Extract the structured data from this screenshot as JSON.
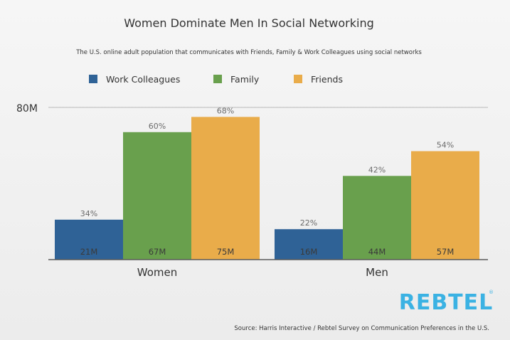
{
  "title": "Women Dominate Men In Social Networking",
  "subtitle": "The U.S. online adult population that communicates with Friends, Family & Work Colleagues using social networks",
  "source": "Source: Harris Interactive / Rebtel Survey on Communication Preferences in the U.S.",
  "logo": {
    "text": "REBTEL",
    "reg": "®"
  },
  "colors": {
    "work": "#2f6296",
    "family": "#69a04d",
    "friends": "#e9ac4a",
    "axis": "#5a5a5a",
    "grid": "#b8b8b8"
  },
  "chart_data": {
    "type": "bar",
    "categories": [
      "Women",
      "Men"
    ],
    "series": [
      {
        "name": "Work Colleagues",
        "values": [
          21,
          16
        ],
        "value_labels": [
          "21M",
          "16M"
        ],
        "percent_labels": [
          "34%",
          "22%"
        ]
      },
      {
        "name": "Family",
        "values": [
          67,
          44
        ],
        "value_labels": [
          "67M",
          "44M"
        ],
        "percent_labels": [
          "60%",
          "42%"
        ]
      },
      {
        "name": "Friends",
        "values": [
          75,
          57
        ],
        "value_labels": [
          "75M",
          "57M"
        ],
        "percent_labels": [
          "68%",
          "54%"
        ]
      }
    ],
    "ytick_labels": [
      "80M"
    ],
    "ylim": [
      0,
      80
    ],
    "grid": true,
    "legend_position": "top-left"
  }
}
